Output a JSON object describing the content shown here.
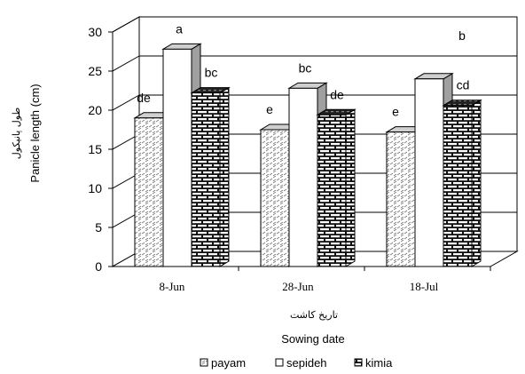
{
  "chart_data": {
    "type": "bar",
    "categories": [
      "8-Jun",
      "28-Jun",
      "18-Jul"
    ],
    "series": [
      {
        "name": "payam",
        "values": [
          19,
          17.5,
          17.2
        ],
        "letters": [
          "de",
          "e",
          "e"
        ]
      },
      {
        "name": "sepideh",
        "values": [
          27.8,
          22.8,
          24
        ],
        "letters": [
          "a",
          "bc",
          "b"
        ]
      },
      {
        "name": "kimia",
        "values": [
          22.2,
          19.4,
          20.6
        ],
        "letters": [
          "bc",
          "de",
          "cd"
        ]
      }
    ],
    "ylabel": "Panicle length (cm)",
    "ylabel_fa": "طول پانیکول",
    "xlabel": "Sowing date",
    "xlabel_fa": "تاریخ کاشت",
    "ylim": [
      0,
      30
    ],
    "yticks": [
      0,
      5,
      10,
      15,
      20,
      25,
      30
    ],
    "grid": true,
    "legend_position": "bottom"
  }
}
